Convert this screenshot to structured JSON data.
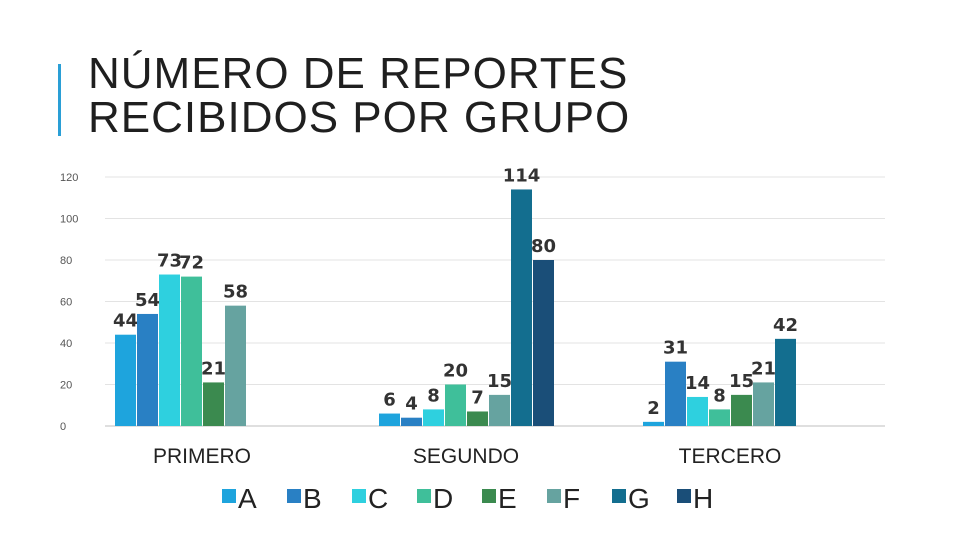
{
  "title_lines": [
    "NÚMERO DE REPORTES",
    "RECIBIDOS POR GRUPO"
  ],
  "chart_data": {
    "type": "bar",
    "title": "NÚMERO DE REPORTES RECIBIDOS POR GRUPO",
    "categories": [
      "PRIMERO",
      "SEGUNDO",
      "TERCERO"
    ],
    "series": [
      {
        "name": "A",
        "color": "#1ea4dd",
        "values": [
          44,
          6,
          2
        ]
      },
      {
        "name": "B",
        "color": "#2980c4",
        "values": [
          54,
          4,
          31
        ]
      },
      {
        "name": "C",
        "color": "#2ed0df",
        "values": [
          73,
          8,
          14
        ]
      },
      {
        "name": "D",
        "color": "#3fbf9a",
        "values": [
          72,
          20,
          8
        ]
      },
      {
        "name": "E",
        "color": "#3b8a4f",
        "values": [
          21,
          7,
          15
        ]
      },
      {
        "name": "F",
        "color": "#66a3a0",
        "values": [
          58,
          15,
          21
        ]
      },
      {
        "name": "G",
        "color": "#136e8f",
        "values": [
          null,
          114,
          42
        ]
      },
      {
        "name": "H",
        "color": "#1a4e78",
        "values": [
          null,
          80,
          null
        ]
      }
    ],
    "y_ticks": [
      0,
      20,
      40,
      60,
      80,
      100,
      120
    ],
    "ylim": [
      0,
      120
    ],
    "grid": true,
    "legend": "bottom"
  }
}
